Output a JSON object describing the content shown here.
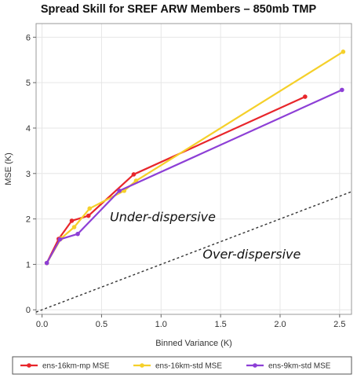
{
  "chart_data": {
    "type": "line",
    "title": "Spread Skill for SREF ARW Members – 850mb TMP",
    "xlabel": "Binned Variance (K)",
    "ylabel": "MSE (K)",
    "xlim": [
      -0.05,
      2.6
    ],
    "ylim": [
      -0.1,
      6.3
    ],
    "xticks": [
      "0.0",
      "0.5",
      "1.0",
      "1.5",
      "2.0",
      "2.5"
    ],
    "yticks": [
      "0",
      "1",
      "2",
      "3",
      "4",
      "5",
      "6"
    ],
    "legend_position": "bottom",
    "series": [
      {
        "name": "ens-16km-mp MSE",
        "color": "#e8262b",
        "x": [
          0.04,
          0.14,
          0.25,
          0.39,
          0.77,
          2.21
        ],
        "y": [
          1.03,
          1.56,
          1.96,
          2.07,
          2.98,
          4.69
        ]
      },
      {
        "name": "ens-16km-std MSE",
        "color": "#f5d02a",
        "x": [
          0.04,
          0.16,
          0.27,
          0.4,
          0.69,
          0.79,
          2.53
        ],
        "y": [
          1.03,
          1.57,
          1.82,
          2.23,
          2.62,
          2.84,
          5.68
        ]
      },
      {
        "name": "ens-9km-std MSE",
        "color": "#8d3fd6",
        "x": [
          0.04,
          0.15,
          0.3,
          0.65,
          2.52
        ],
        "y": [
          1.03,
          1.55,
          1.67,
          2.62,
          4.84
        ]
      }
    ],
    "reference_line": {
      "style": "dashed",
      "x": [
        -0.05,
        2.6
      ],
      "y": [
        -0.05,
        2.6
      ]
    },
    "annotations": [
      {
        "text": "Under-dispersive",
        "x": 0.57,
        "y": 1.95
      },
      {
        "text": "Over-dispersive",
        "x": 1.35,
        "y": 1.13
      }
    ]
  }
}
